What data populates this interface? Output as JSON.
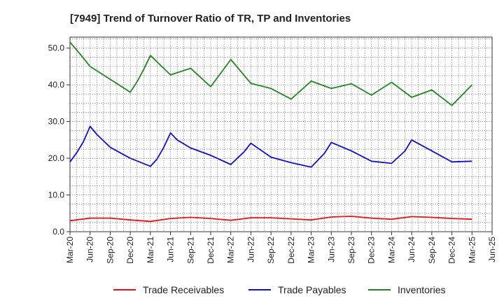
{
  "chart_data": {
    "type": "line",
    "title": "[7949]  Trend of Turnover Ratio of TR, TP and Inventories",
    "xlabel": "",
    "ylabel": "",
    "ylim": [
      0,
      53
    ],
    "yticks": [
      0,
      10,
      20,
      30,
      40,
      50
    ],
    "ytick_labels": [
      "0.0",
      "10.0",
      "20.0",
      "30.0",
      "40.0",
      "50.0"
    ],
    "grid": true,
    "legend_position": "bottom",
    "categories": [
      "Mar-20",
      "Apr-20",
      "May-20",
      "Jun-20",
      "Jul-20",
      "Aug-20",
      "Sep-20",
      "Oct-20",
      "Nov-20",
      "Dec-20",
      "Jan-21",
      "Feb-21",
      "Mar-21",
      "Apr-21",
      "May-21",
      "Jun-21",
      "Jul-21",
      "Aug-21",
      "Sep-21",
      "Oct-21",
      "Nov-21",
      "Dec-21",
      "Jan-22",
      "Feb-22",
      "Mar-22",
      "Apr-22",
      "May-22",
      "Jun-22",
      "Jul-22",
      "Aug-22",
      "Sep-22",
      "Oct-22",
      "Nov-22",
      "Dec-22",
      "Jan-23",
      "Feb-23",
      "Mar-23",
      "Apr-23",
      "May-23",
      "Jun-23",
      "Jul-23",
      "Aug-23",
      "Sep-23",
      "Oct-23",
      "Nov-23",
      "Dec-23",
      "Jan-24",
      "Feb-24",
      "Mar-24",
      "Apr-24",
      "May-24",
      "Jun-24",
      "Jul-24",
      "Aug-24",
      "Sep-24",
      "Oct-24",
      "Nov-24",
      "Dec-24",
      "Jan-25",
      "Feb-25",
      "Mar-25",
      "Apr-25",
      "May-25",
      "Jun-25"
    ],
    "xtick_labels": [
      "Mar-20",
      "Jun-20",
      "Sep-20",
      "Dec-20",
      "Mar-21",
      "Jun-21",
      "Sep-21",
      "Dec-21",
      "Mar-22",
      "Jun-22",
      "Sep-22",
      "Dec-22",
      "Mar-23",
      "Jun-23",
      "Sep-23",
      "Dec-23",
      "Mar-24",
      "Jun-24",
      "Sep-24",
      "Dec-24",
      "Mar-25",
      "Jun-25"
    ],
    "series": [
      {
        "name": "Trade Receivables",
        "color": "#ee1111",
        "x": [
          "Mar-20",
          "Jun-20",
          "Sep-20",
          "Dec-20",
          "Mar-21",
          "Jun-21",
          "Sep-21",
          "Dec-21",
          "Mar-22",
          "Jun-22",
          "Sep-22",
          "Dec-22",
          "Mar-23",
          "Jun-23",
          "Sep-23",
          "Dec-23",
          "Mar-24",
          "Jun-24",
          "Sep-24",
          "Dec-24",
          "Mar-25"
        ],
        "values": [
          3.0,
          3.7,
          3.7,
          3.2,
          2.8,
          3.6,
          3.9,
          3.6,
          3.1,
          3.8,
          3.8,
          3.5,
          3.2,
          4.0,
          4.2,
          3.7,
          3.4,
          4.1,
          3.9,
          3.6,
          3.4
        ]
      },
      {
        "name": "Trade Payables",
        "color": "#1111cc",
        "x": [
          "Mar-20",
          "Apr-20",
          "May-20",
          "Jun-20",
          "Jul-20",
          "Sep-20",
          "Dec-20",
          "Mar-21",
          "Apr-21",
          "May-21",
          "Jun-21",
          "Jul-21",
          "Sep-21",
          "Dec-21",
          "Mar-22",
          "May-22",
          "Jun-22",
          "Sep-22",
          "Dec-22",
          "Mar-23",
          "May-23",
          "Jun-23",
          "Sep-23",
          "Dec-23",
          "Mar-24",
          "May-24",
          "Jun-24",
          "Sep-24",
          "Dec-24",
          "Mar-25"
        ],
        "values": [
          19.0,
          21.5,
          24.5,
          28.7,
          26.5,
          23.0,
          20.0,
          17.8,
          19.8,
          23.0,
          26.9,
          25.0,
          22.8,
          20.8,
          18.3,
          21.8,
          24.1,
          20.3,
          18.8,
          17.6,
          21.4,
          24.3,
          22.0,
          19.2,
          18.6,
          22.0,
          25.0,
          22.0,
          19.0,
          19.2
        ]
      },
      {
        "name": "Inventories",
        "color": "#228822",
        "x": [
          "Mar-20",
          "Apr-20",
          "May-20",
          "Jun-20",
          "Sep-20",
          "Dec-20",
          "Jan-21",
          "Feb-21",
          "Mar-21",
          "Jun-21",
          "Sep-21",
          "Dec-21",
          "Feb-22",
          "Mar-22",
          "Jun-22",
          "Sep-22",
          "Dec-22",
          "Mar-23",
          "Jun-23",
          "Sep-23",
          "Dec-23",
          "Mar-24",
          "Jun-24",
          "Sep-24",
          "Dec-24",
          "Mar-25"
        ],
        "values": [
          51.6,
          49.5,
          47.3,
          45.0,
          41.5,
          38.0,
          40.8,
          44.2,
          48.0,
          42.7,
          44.5,
          39.5,
          44.4,
          46.9,
          40.4,
          39.0,
          36.1,
          41.0,
          39.0,
          40.3,
          37.2,
          40.7,
          36.6,
          38.6,
          34.4,
          40.0
        ]
      }
    ]
  }
}
